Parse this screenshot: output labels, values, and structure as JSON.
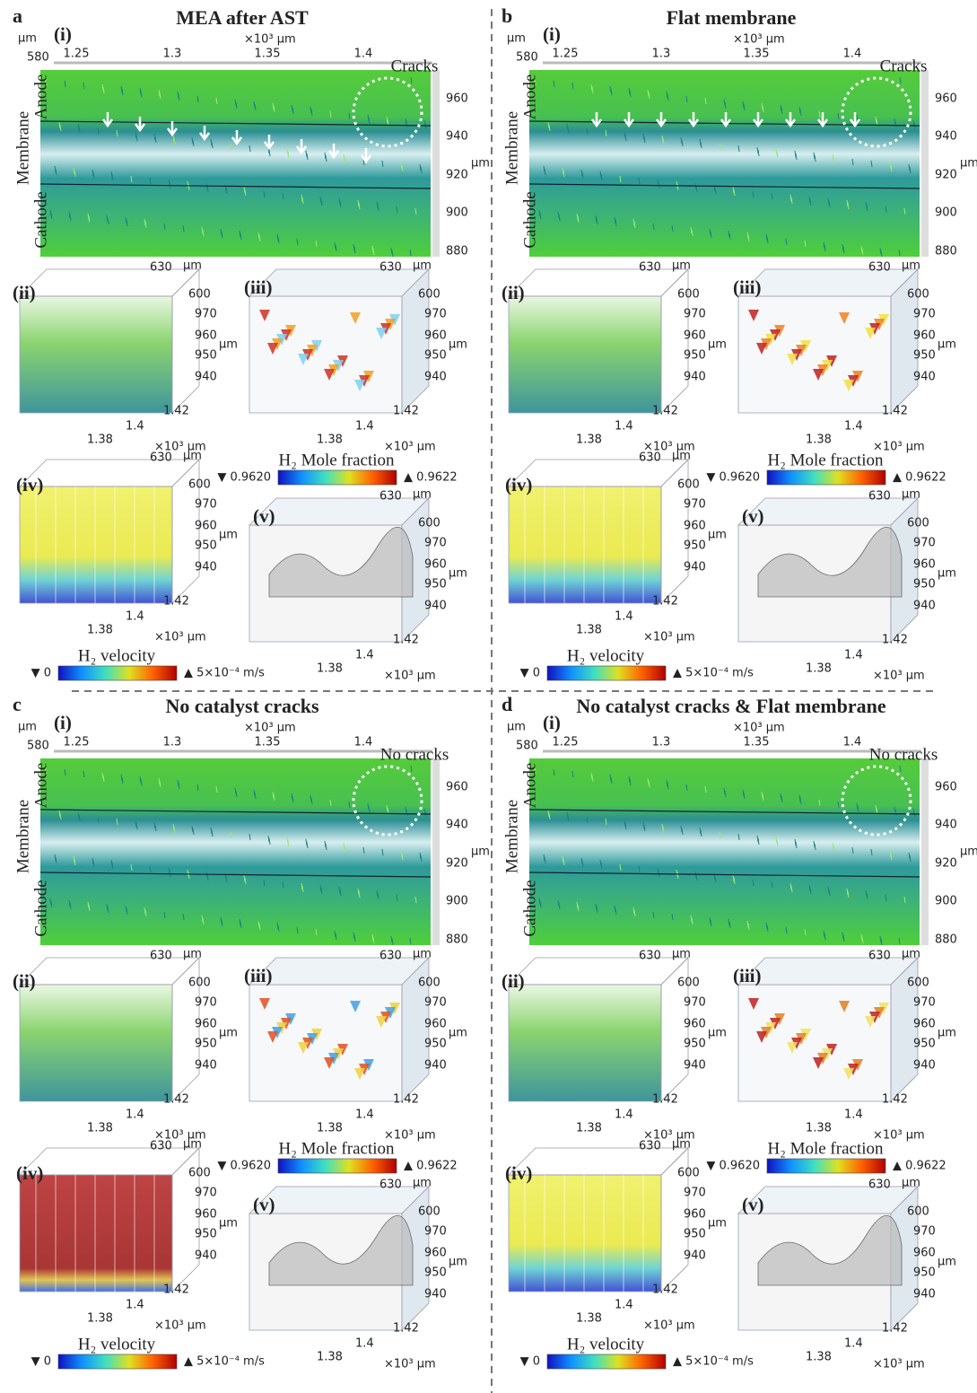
{
  "panels": [
    {
      "letter": "a",
      "title": "MEA after AST",
      "note": "Cracks"
    },
    {
      "letter": "b",
      "title": "Flat membrane",
      "note": "Cracks"
    },
    {
      "letter": "c",
      "title": "No catalyst cracks",
      "note": "No cracks"
    },
    {
      "letter": "d",
      "title": "No catalyst cracks & Flat membrane",
      "note": "No cracks"
    }
  ],
  "subpanel_labels": [
    "(i)",
    "(ii)",
    "(iii)",
    "(iv)",
    "(v)"
  ],
  "main_axes": {
    "unit": "µm",
    "x_unit": "×10³ µm",
    "y_start": "580",
    "xticks": [
      "1.25",
      "1.3",
      "1.35",
      "1.4"
    ],
    "yticks": [
      "960",
      "940",
      "920",
      "900",
      "880"
    ],
    "layers": [
      "Anode",
      "Membrane",
      "Cathode"
    ]
  },
  "axes_3d": {
    "unit": "µm",
    "x_unit": "×10³ µm",
    "top": "630",
    "depth": "600",
    "zticks": [
      "970",
      "960",
      "950",
      "940"
    ],
    "xticks": [
      "1.42",
      "1.4",
      "1.38"
    ]
  },
  "colorbars": {
    "mole": {
      "title": "H₂ Mole fraction",
      "min": "▼ 0.9620",
      "max": "▲ 0.9622"
    },
    "velocity": {
      "title": "H₂ velocity",
      "min": "▼ 0",
      "max": "▲ 5×10⁻⁴ m/s"
    }
  }
}
